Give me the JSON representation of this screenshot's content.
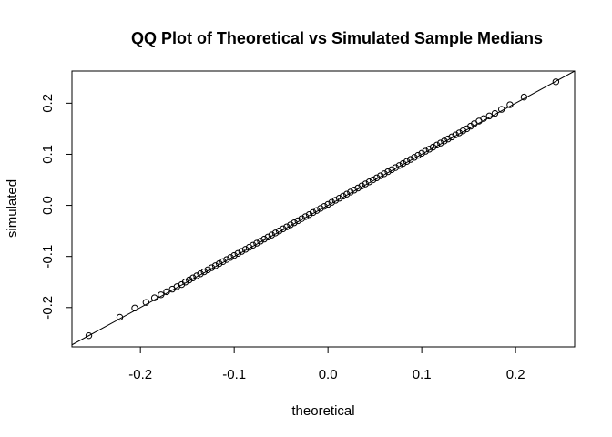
{
  "chart_data": {
    "type": "scatter",
    "title": "QQ Plot of Theoretical vs Simulated Sample Medians",
    "xlabel": "theoretical",
    "ylabel": "simulated",
    "xlim": [
      -0.273,
      0.263
    ],
    "ylim": [
      -0.277,
      0.263
    ],
    "xticks": [
      -0.2,
      -0.1,
      0.0,
      0.1,
      0.2
    ],
    "xtick_labels": [
      "-0.2",
      "-0.1",
      "0.0",
      "0.1",
      "0.2"
    ],
    "yticks": [
      -0.2,
      -0.1,
      0.0,
      0.1,
      0.2
    ],
    "ytick_labels": [
      "-0.2",
      "-0.1",
      "0.0",
      "0.1",
      "0.2"
    ],
    "grid": false,
    "reference_line": {
      "intercept": 0,
      "slope": 1
    },
    "series": [
      {
        "marker": "open-circle",
        "x": [
          -0.255,
          -0.222,
          -0.206,
          -0.194,
          -0.185,
          -0.178,
          -0.172,
          -0.166,
          -0.161,
          -0.156,
          -0.152,
          -0.148,
          -0.144,
          -0.14,
          -0.136,
          -0.132,
          -0.128,
          -0.124,
          -0.12,
          -0.116,
          -0.112,
          -0.108,
          -0.104,
          -0.1,
          -0.096,
          -0.092,
          -0.088,
          -0.084,
          -0.08,
          -0.076,
          -0.072,
          -0.068,
          -0.064,
          -0.06,
          -0.056,
          -0.052,
          -0.048,
          -0.044,
          -0.04,
          -0.036,
          -0.032,
          -0.028,
          -0.024,
          -0.02,
          -0.016,
          -0.012,
          -0.008,
          -0.004,
          0.0,
          0.004,
          0.008,
          0.012,
          0.016,
          0.02,
          0.024,
          0.028,
          0.032,
          0.036,
          0.04,
          0.044,
          0.048,
          0.052,
          0.056,
          0.06,
          0.064,
          0.068,
          0.072,
          0.076,
          0.08,
          0.084,
          0.088,
          0.092,
          0.096,
          0.1,
          0.104,
          0.108,
          0.112,
          0.116,
          0.12,
          0.124,
          0.128,
          0.132,
          0.136,
          0.14,
          0.144,
          0.148,
          0.152,
          0.156,
          0.161,
          0.166,
          0.172,
          0.178,
          0.185,
          0.194,
          0.209,
          0.243
        ],
        "y": [
          -0.255,
          -0.219,
          -0.201,
          -0.19,
          -0.181,
          -0.175,
          -0.169,
          -0.164,
          -0.159,
          -0.155,
          -0.15,
          -0.146,
          -0.142,
          -0.138,
          -0.134,
          -0.13,
          -0.126,
          -0.122,
          -0.118,
          -0.114,
          -0.11,
          -0.106,
          -0.102,
          -0.098,
          -0.094,
          -0.09,
          -0.086,
          -0.082,
          -0.078,
          -0.074,
          -0.07,
          -0.066,
          -0.062,
          -0.058,
          -0.054,
          -0.05,
          -0.046,
          -0.042,
          -0.038,
          -0.034,
          -0.03,
          -0.026,
          -0.022,
          -0.018,
          -0.014,
          -0.01,
          -0.006,
          -0.002,
          0.002,
          0.006,
          0.01,
          0.014,
          0.018,
          0.022,
          0.026,
          0.03,
          0.034,
          0.038,
          0.042,
          0.046,
          0.05,
          0.054,
          0.058,
          0.062,
          0.066,
          0.07,
          0.074,
          0.078,
          0.082,
          0.086,
          0.09,
          0.094,
          0.098,
          0.102,
          0.106,
          0.11,
          0.114,
          0.118,
          0.122,
          0.126,
          0.13,
          0.134,
          0.138,
          0.142,
          0.146,
          0.15,
          0.155,
          0.16,
          0.165,
          0.17,
          0.175,
          0.18,
          0.188,
          0.197,
          0.212,
          0.242
        ]
      }
    ]
  }
}
